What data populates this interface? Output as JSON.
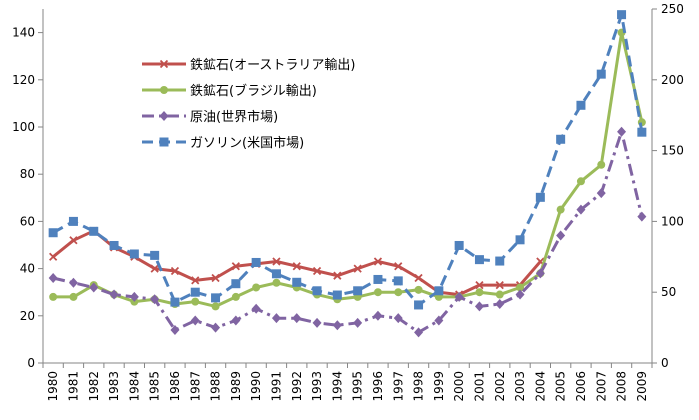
{
  "chart_data": {
    "type": "line",
    "categories": [
      "1980",
      "1981",
      "1982",
      "1983",
      "1984",
      "1985",
      "1986",
      "1987",
      "1988",
      "1989",
      "1990",
      "1991",
      "1992",
      "1993",
      "1994",
      "1995",
      "1996",
      "1997",
      "1998",
      "1999",
      "2000",
      "2001",
      "2002",
      "2003",
      "2004",
      "2005",
      "2006",
      "2007",
      "2008",
      "2009"
    ],
    "y_left": {
      "ylim": [
        0,
        150
      ],
      "ticks": [
        0,
        20,
        40,
        60,
        80,
        100,
        120,
        140
      ]
    },
    "y_right": {
      "ylim": [
        0,
        250
      ],
      "ticks": [
        0,
        50,
        100,
        150,
        200,
        250
      ]
    },
    "grid": false,
    "legend_position": "upper-left inside plot",
    "series": [
      {
        "name": "鉄鉱石(オーストラリア輸出)",
        "axis": "left",
        "color": "#c0504d",
        "marker": "x",
        "dash": "solid",
        "values": [
          45,
          52,
          56,
          49,
          45,
          40,
          39,
          35,
          36,
          41,
          42,
          43,
          41,
          39,
          37,
          40,
          43,
          41,
          36,
          30,
          29,
          33,
          33,
          33,
          43,
          null,
          null,
          null,
          null,
          null
        ]
      },
      {
        "name": "鉄鉱石(ブラジル輸出)",
        "axis": "left",
        "color": "#9bbb59",
        "marker": "circle",
        "dash": "solid",
        "values": [
          28,
          28,
          33,
          29,
          26,
          27,
          25,
          26,
          24,
          28,
          32,
          34,
          32,
          29,
          27,
          28,
          30,
          30,
          31,
          28,
          28,
          30,
          29,
          32,
          38,
          65,
          77,
          84,
          140,
          102
        ]
      },
      {
        "name": "原油(世界市場)",
        "axis": "left",
        "color": "#8064a2",
        "marker": "diamond",
        "dash": "dashdot",
        "values": [
          36,
          34,
          32,
          29,
          28,
          27,
          14,
          18,
          15,
          18,
          23,
          19,
          19,
          17,
          16,
          17,
          20,
          19,
          13,
          18,
          28,
          24,
          25,
          29,
          38,
          54,
          65,
          72,
          98,
          62
        ]
      },
      {
        "name": "ガソリン(米国市場)",
        "axis": "right",
        "color": "#4f81bd",
        "marker": "square",
        "dash": "dashed",
        "values": [
          92,
          100,
          93,
          83,
          77,
          76,
          43,
          50,
          46,
          56,
          71,
          63,
          57,
          51,
          48,
          51,
          59,
          58,
          41,
          51,
          83,
          73,
          72,
          87,
          117,
          158,
          182,
          204,
          246,
          163
        ]
      }
    ]
  }
}
